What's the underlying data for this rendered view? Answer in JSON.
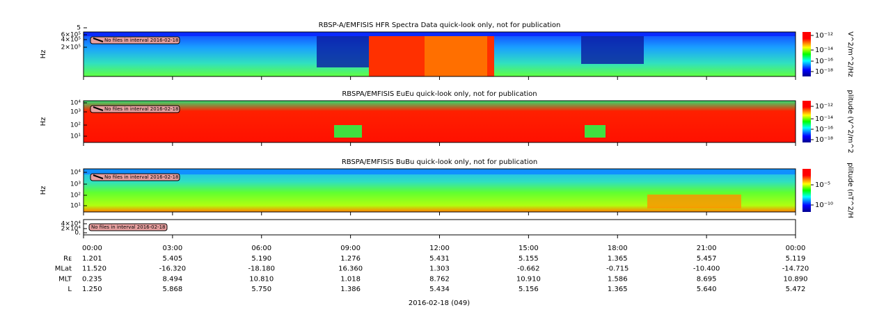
{
  "panels": [
    {
      "title": "RBSP-A/EMFISIS  HFR Spectra Data quick-look only, not for publication",
      "ylabel": "Hz",
      "yticks": [
        "5",
        "6×10⁵",
        "4×10⁵",
        "2×10⁵"
      ],
      "colorbar_label": "V^2/m^2/Hz",
      "colorbar_ticks": [
        "10⁻¹²",
        "10⁻¹⁴",
        "10⁻¹⁶",
        "10⁻¹⁸"
      ],
      "note": "No files in interval 2016-02-18"
    },
    {
      "title": "RBSPA/EMFISIS  EuEu quick-look only, not for publication",
      "ylabel": "Hz",
      "yticks": [
        "10⁴",
        "10³",
        "10²",
        "10¹"
      ],
      "colorbar_label": "plitude (V^2/m^2",
      "colorbar_ticks": [
        "10⁻¹²",
        "10⁻¹⁴",
        "10⁻¹⁶",
        "10⁻¹⁸"
      ],
      "note": "No files in interval 2016-02-18"
    },
    {
      "title": "RBSPA/EMFISIS  BuBu quick-look only, not for publication",
      "ylabel": "Hz",
      "yticks": [
        "10⁴",
        "10³",
        "10²",
        "10¹"
      ],
      "colorbar_label": "plitude (nT^2/H",
      "colorbar_ticks": [
        "10⁻⁵",
        "10⁻¹⁰"
      ],
      "note": "No files in interval 2016-02-18"
    },
    {
      "yticks": [
        "4×10⁴",
        "2×10⁴",
        "0."
      ],
      "note": "No files in interval 2016-02-18"
    }
  ],
  "time_labels": [
    "00:00",
    "03:00",
    "06:00",
    "09:00",
    "12:00",
    "15:00",
    "18:00",
    "21:00",
    "00:00"
  ],
  "ephemeris": [
    {
      "label": "Rᴇ",
      "values": [
        "1.201",
        "5.405",
        "5.190",
        "1.276",
        "5.431",
        "5.155",
        "1.365",
        "5.457",
        "5.119"
      ]
    },
    {
      "label": "MLat",
      "values": [
        "11.520",
        "-16.320",
        "-18.180",
        "16.360",
        "1.303",
        "-0.662",
        "-0.715",
        "-10.400",
        "-14.720"
      ]
    },
    {
      "label": "MLT",
      "values": [
        "0.235",
        "8.494",
        "10.810",
        "1.018",
        "8.762",
        "10.910",
        "1.586",
        "8.695",
        "10.890"
      ]
    },
    {
      "label": "L",
      "values": [
        "1.250",
        "5.868",
        "5.750",
        "1.386",
        "5.434",
        "5.156",
        "1.365",
        "5.640",
        "5.472"
      ]
    }
  ],
  "footer": "2016-02-18 (049)"
}
